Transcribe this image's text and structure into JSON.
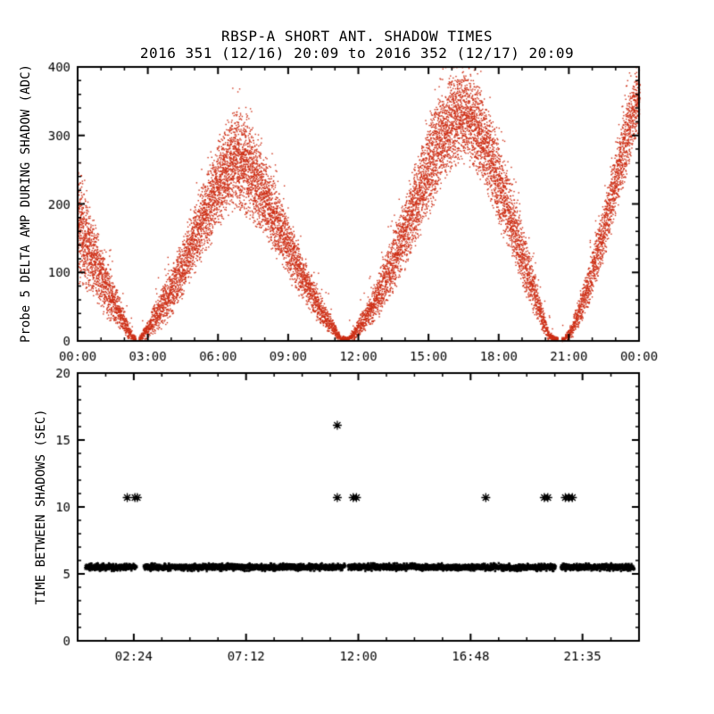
{
  "page": {
    "background": "#ffffff",
    "foreground": "#000000"
  },
  "chart_data": [
    {
      "type": "scatter",
      "panel": "top",
      "title": "RBSP-A SHORT ANT. SHADOW TIMES",
      "subtitle": "2016 351 (12/16) 20:09 to 2016 352 (12/17) 20:09",
      "xlabel": "",
      "ylabel": "Probe 5 DELTA AMP DURING SHADOW (ADC)",
      "xlim": [
        0,
        24
      ],
      "ylim": [
        0,
        400
      ],
      "x_major_ticks": [
        0,
        3,
        6,
        9,
        12,
        15,
        18,
        21,
        24
      ],
      "x_tick_labels": [
        "00:00",
        "03:00",
        "06:00",
        "09:00",
        "12:00",
        "15:00",
        "18:00",
        "21:00",
        "00:00"
      ],
      "x_minor_step": 1,
      "y_major_ticks": [
        0,
        100,
        200,
        300,
        400
      ],
      "y_tick_labels": [
        "0",
        "100",
        "200",
        "300",
        "400"
      ],
      "y_minor_step": 20,
      "marker": "dot",
      "color": "#cd2f16",
      "envelope_t_lo_hi": [
        [
          0.0,
          80,
          265
        ],
        [
          0.4,
          65,
          215
        ],
        [
          0.8,
          48,
          170
        ],
        [
          1.2,
          32,
          128
        ],
        [
          1.6,
          18,
          88
        ],
        [
          2.0,
          5,
          45
        ],
        [
          2.3,
          0,
          12
        ],
        [
          2.6,
          0,
          6
        ],
        [
          2.9,
          2,
          25
        ],
        [
          3.3,
          10,
          60
        ],
        [
          3.7,
          22,
          92
        ],
        [
          4.1,
          40,
          125
        ],
        [
          4.5,
          62,
          160
        ],
        [
          4.9,
          88,
          198
        ],
        [
          5.3,
          115,
          235
        ],
        [
          5.7,
          142,
          272
        ],
        [
          6.1,
          165,
          308
        ],
        [
          6.4,
          178,
          332
        ],
        [
          6.7,
          185,
          352
        ],
        [
          7.0,
          183,
          348
        ],
        [
          7.3,
          174,
          330
        ],
        [
          7.7,
          157,
          300
        ],
        [
          8.1,
          137,
          268
        ],
        [
          8.5,
          115,
          233
        ],
        [
          8.9,
          94,
          197
        ],
        [
          9.3,
          72,
          160
        ],
        [
          9.7,
          52,
          124
        ],
        [
          10.1,
          34,
          90
        ],
        [
          10.5,
          18,
          60
        ],
        [
          10.9,
          6,
          32
        ],
        [
          11.2,
          0,
          10
        ],
        [
          11.5,
          0,
          6
        ],
        [
          11.8,
          2,
          22
        ],
        [
          12.2,
          10,
          50
        ],
        [
          12.6,
          24,
          82
        ],
        [
          13.0,
          42,
          118
        ],
        [
          13.4,
          65,
          156
        ],
        [
          13.8,
          92,
          198
        ],
        [
          14.2,
          120,
          242
        ],
        [
          14.6,
          150,
          285
        ],
        [
          15.0,
          180,
          325
        ],
        [
          15.4,
          212,
          362
        ],
        [
          15.8,
          238,
          392
        ],
        [
          16.2,
          255,
          400
        ],
        [
          16.6,
          258,
          400
        ],
        [
          17.0,
          242,
          392
        ],
        [
          17.4,
          215,
          358
        ],
        [
          17.8,
          182,
          318
        ],
        [
          18.2,
          148,
          272
        ],
        [
          18.6,
          112,
          225
        ],
        [
          19.0,
          76,
          172
        ],
        [
          19.4,
          44,
          120
        ],
        [
          19.8,
          15,
          62
        ],
        [
          20.1,
          2,
          18
        ],
        [
          20.4,
          0,
          7
        ],
        [
          20.8,
          0,
          8
        ],
        [
          21.1,
          4,
          30
        ],
        [
          21.5,
          25,
          78
        ],
        [
          21.9,
          55,
          130
        ],
        [
          22.3,
          95,
          185
        ],
        [
          22.7,
          140,
          245
        ],
        [
          23.1,
          192,
          305
        ],
        [
          23.5,
          248,
          362
        ],
        [
          23.8,
          290,
          398
        ],
        [
          24.0,
          310,
          400
        ]
      ],
      "gaps_hours": [
        [
          2.48,
          2.62
        ],
        [
          20.5,
          20.66
        ]
      ]
    },
    {
      "type": "scatter",
      "panel": "bottom",
      "title": "",
      "xlabel": "",
      "ylabel": "TIME BETWEEN SHADOWS (SEC)",
      "xlim": [
        0,
        24
      ],
      "ylim": [
        0,
        20
      ],
      "x_major_ticks": [
        2.4,
        7.2,
        12,
        16.8,
        21.583
      ],
      "x_tick_labels": [
        "02:24",
        "07:12",
        "12:00",
        "16:48",
        "21:35"
      ],
      "x_minor_step": 1.2,
      "y_major_ticks": [
        0,
        5,
        10,
        15,
        20
      ],
      "y_tick_labels": [
        "0",
        "5",
        "10",
        "15",
        "20"
      ],
      "y_minor_step": 1,
      "marker": "asterisk",
      "color": "#000000",
      "band": {
        "y_sec": 5.5,
        "jitter": 0.15,
        "segments_hours": [
          [
            0.35,
            2.5
          ],
          [
            2.85,
            11.42
          ],
          [
            11.58,
            20.42
          ],
          [
            20.68,
            23.78
          ]
        ]
      },
      "outliers_hour_sec": [
        [
          2.12,
          10.7
        ],
        [
          2.45,
          10.7
        ],
        [
          2.55,
          10.7
        ],
        [
          11.1,
          16.1
        ],
        [
          11.1,
          10.7
        ],
        [
          11.78,
          10.7
        ],
        [
          11.92,
          10.7
        ],
        [
          17.45,
          10.7
        ],
        [
          19.95,
          10.7
        ],
        [
          20.1,
          10.7
        ],
        [
          20.85,
          10.7
        ],
        [
          21.0,
          10.7
        ],
        [
          21.15,
          10.7
        ]
      ]
    }
  ]
}
